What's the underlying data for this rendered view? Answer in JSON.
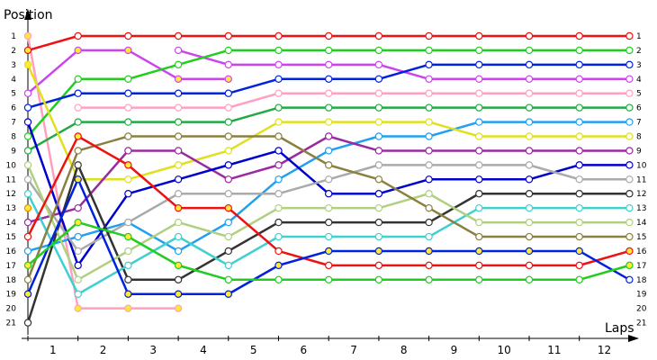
{
  "chart_data": {
    "type": "line",
    "ylabel": "Position",
    "xlabel": "Laps",
    "x": [
      0,
      1,
      2,
      3,
      4,
      5,
      6,
      7,
      8,
      9,
      10,
      11,
      12
    ],
    "x_tick_labels": [
      "1",
      "2",
      "3",
      "4",
      "5",
      "6",
      "7",
      "8",
      "9",
      "10",
      "11",
      "12"
    ],
    "y_tick_labels": [
      "1",
      "2",
      "3",
      "4",
      "5",
      "6",
      "7",
      "8",
      "9",
      "10",
      "11",
      "12",
      "13",
      "14",
      "15",
      "16",
      "17",
      "18",
      "19",
      "20",
      "21"
    ],
    "ylim": [
      1,
      21
    ],
    "y_inverted": true,
    "colors": {
      "axis": "#000000",
      "marker_fill": "#ffffff",
      "pit_marker_fill": "#ffea3a"
    },
    "series": [
      {
        "color": "#ee1111",
        "positions": [
          2,
          1,
          1,
          1,
          1,
          1,
          1,
          1,
          1,
          1,
          1,
          1,
          1
        ],
        "pit_laps": [
          0
        ]
      },
      {
        "color": "#ffa0c0",
        "positions": [
          1,
          20,
          20,
          20,
          null,
          null,
          null,
          null,
          null,
          null,
          null,
          null,
          null
        ],
        "pit_laps": [
          0,
          1,
          2,
          3
        ]
      },
      {
        "color": "#cc44ee",
        "positions": [
          5,
          2,
          2,
          4,
          4,
          null,
          null,
          null,
          null,
          null,
          null,
          null,
          null
        ],
        "pit_laps": [
          1,
          2,
          3,
          4
        ]
      },
      {
        "color": "#cc44ee",
        "positions": [
          null,
          null,
          null,
          2,
          3,
          3,
          3,
          3,
          4,
          4,
          4,
          4,
          4
        ],
        "pit_laps": []
      },
      {
        "color": "#22cc22",
        "positions": [
          8,
          4,
          4,
          3,
          2,
          2,
          2,
          2,
          2,
          2,
          2,
          2,
          2
        ],
        "pit_laps": []
      },
      {
        "color": "#0022dd",
        "positions": [
          6,
          5,
          5,
          5,
          5,
          4,
          4,
          4,
          3,
          3,
          3,
          3,
          3
        ],
        "pit_laps": []
      },
      {
        "color": "#ffa0c0",
        "positions": [
          null,
          6,
          6,
          6,
          6,
          5,
          5,
          5,
          5,
          5,
          5,
          5,
          5
        ],
        "pit_laps": []
      },
      {
        "color": "#22aa44",
        "positions": [
          9,
          7,
          7,
          7,
          7,
          6,
          6,
          6,
          6,
          6,
          6,
          6,
          6
        ],
        "pit_laps": []
      },
      {
        "color": "#20a0f0",
        "positions": [
          16,
          15,
          14,
          16,
          14,
          11,
          9,
          8,
          8,
          7,
          7,
          7,
          7
        ],
        "pit_laps": []
      },
      {
        "color": "#e0e020",
        "positions": [
          3,
          11,
          11,
          10,
          9,
          7,
          7,
          7,
          7,
          8,
          8,
          8,
          8
        ],
        "pit_laps": [
          0
        ]
      },
      {
        "color": "#9a2aa0",
        "positions": [
          14,
          13,
          9,
          9,
          11,
          10,
          8,
          9,
          9,
          9,
          9,
          9,
          9
        ],
        "pit_laps": []
      },
      {
        "color": "#0000cc",
        "positions": [
          7,
          17,
          12,
          11,
          10,
          9,
          12,
          12,
          11,
          11,
          11,
          10,
          10
        ],
        "pit_laps": []
      },
      {
        "color": "#aaaaaa",
        "positions": [
          11,
          16,
          14,
          12,
          12,
          12,
          11,
          10,
          10,
          10,
          10,
          11,
          11
        ],
        "pit_laps": []
      },
      {
        "color": "#333333",
        "positions": [
          21,
          10,
          18,
          18,
          16,
          14,
          14,
          14,
          14,
          12,
          12,
          12,
          12
        ],
        "pit_laps": []
      },
      {
        "color": "#40d0d0",
        "positions": [
          12,
          19,
          17,
          15,
          17,
          15,
          15,
          15,
          15,
          13,
          13,
          13,
          13
        ],
        "pit_laps": []
      },
      {
        "color": "#b0d080",
        "positions": [
          10,
          18,
          16,
          14,
          15,
          13,
          13,
          13,
          12,
          14,
          14,
          14,
          14
        ],
        "pit_laps": []
      },
      {
        "color": "#8a8040",
        "positions": [
          18,
          9,
          8,
          8,
          8,
          8,
          10,
          11,
          13,
          15,
          15,
          15,
          15
        ],
        "pit_laps": []
      },
      {
        "color": "#ee1111",
        "positions": [
          15,
          8,
          10,
          13,
          13,
          16,
          17,
          17,
          17,
          17,
          17,
          17,
          16
        ],
        "pit_laps": [
          1,
          2,
          3,
          4,
          12
        ]
      },
      {
        "color": "#0022dd",
        "positions": [
          19,
          11,
          19,
          19,
          19,
          17,
          16,
          16,
          16,
          16,
          16,
          16,
          18
        ],
        "pit_laps": [
          0,
          1,
          2,
          3,
          4,
          5,
          6,
          7,
          8,
          9,
          10,
          11
        ]
      },
      {
        "color": "#22cc22",
        "positions": [
          17,
          14,
          15,
          17,
          18,
          18,
          18,
          18,
          18,
          18,
          18,
          18,
          17
        ],
        "pit_laps": [
          0,
          1,
          2,
          3,
          12
        ]
      },
      {
        "color": "#ffa0c0",
        "positions": [
          null,
          null,
          null,
          null,
          null,
          null,
          null,
          null,
          null,
          null,
          null,
          null,
          null
        ],
        "pit_laps": []
      },
      {
        "color": "#ee8800",
        "positions": [
          13,
          null,
          null,
          null,
          null,
          null,
          null,
          null,
          null,
          null,
          null,
          null,
          null
        ],
        "pit_laps": [
          0
        ]
      }
    ]
  }
}
